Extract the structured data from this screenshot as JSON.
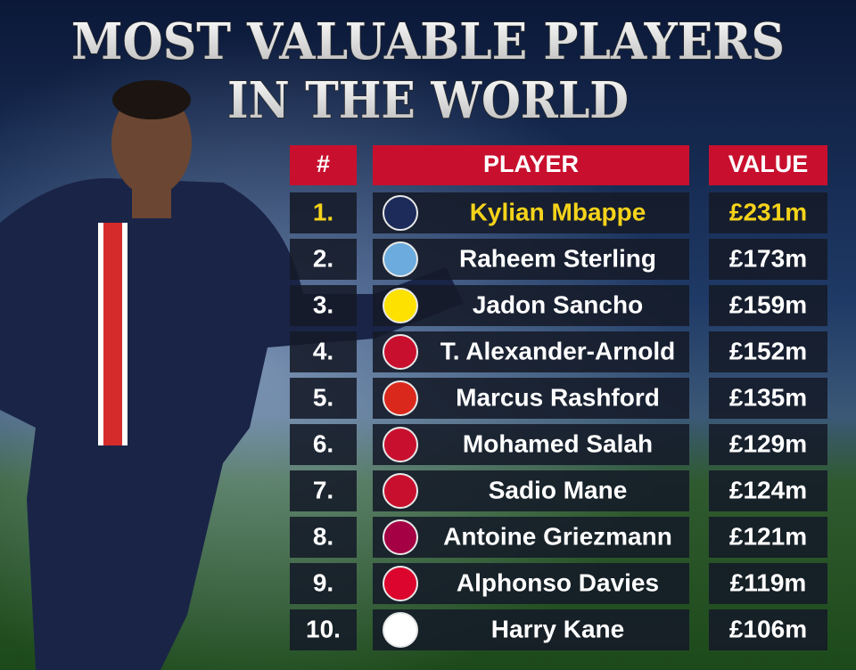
{
  "header": {
    "title_lines": [
      "MOST VALUABLE PLAYERS",
      "IN THE WORLD"
    ]
  },
  "table": {
    "columns": [
      "#",
      "PLAYER",
      "VALUE"
    ],
    "rows": [
      [
        "1.",
        "Kylian Mbappe",
        "£231m"
      ],
      [
        "2.",
        "Raheem Sterling",
        "£173m"
      ],
      [
        "3.",
        "Jadon Sancho",
        "£159m"
      ],
      [
        "4.",
        "T. Alexander-Arnold",
        "£152m"
      ],
      [
        "5.",
        "Marcus Rashford",
        "£135m"
      ],
      [
        "6.",
        "Mohamed Salah",
        "£129m"
      ],
      [
        "7.",
        "Sadio Mane",
        "£124m"
      ],
      [
        "8.",
        "Antoine Griezmann",
        "£121m"
      ],
      [
        "9.",
        "Alphonso Davies",
        "£119m"
      ],
      [
        "10.",
        "Harry Kane",
        "£106m"
      ]
    ]
  }
}
